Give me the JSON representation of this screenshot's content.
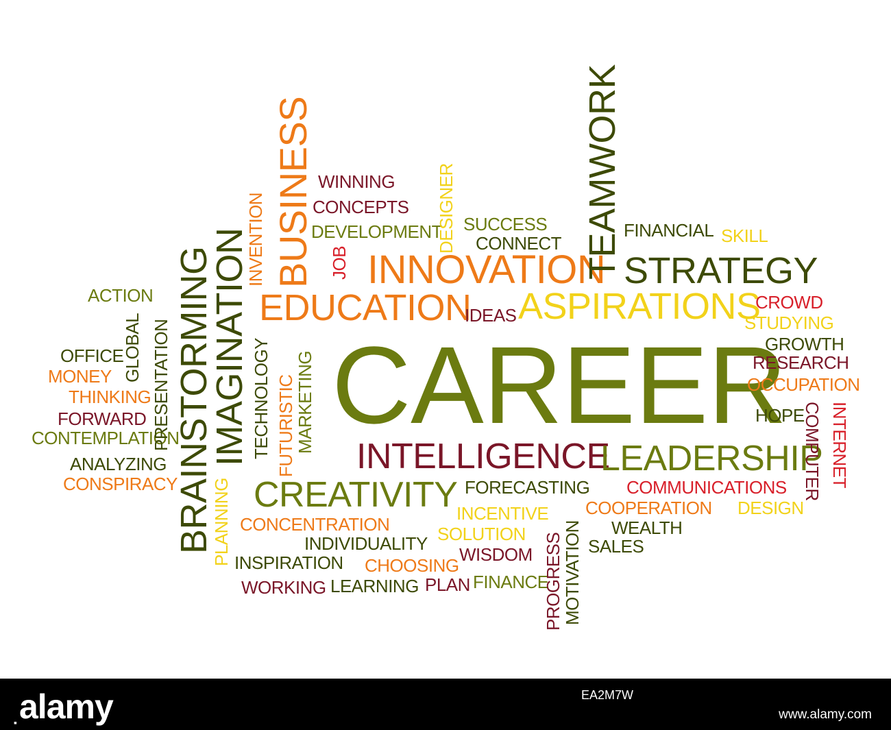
{
  "colors": {
    "olive": "#6b7b10",
    "dark_olive": "#3d4a06",
    "maroon": "#7a1628",
    "orange": "#ee7a18",
    "yellow": "#f2d21a",
    "red": "#d8202a",
    "background": "#ffffff",
    "footer": "#000000"
  },
  "words": {
    "career": "CAREER",
    "innovation": "INNOVATION",
    "strategy": "STRATEGY",
    "aspirations": "ASPIRATIONS",
    "education": "EDUCATION",
    "intelligence": "INTELLIGENCE",
    "leadership": "LEADERSHIP",
    "creativity": "CREATIVITY",
    "teamwork": "TEAMWORK",
    "business": "BUSINESS",
    "imagination": "IMAGINATION",
    "brainstorming": "BRAINSTORMING",
    "invention": "INVENTION",
    "job": "JOB",
    "designer": "DESIGNER",
    "winning": "WINNING",
    "concepts": "CONCEPTS",
    "development": "DEVELOPMENT",
    "success": "SUCCESS",
    "connect": "CONNECT",
    "financial": "FINANCIAL",
    "skill": "SKILL",
    "ideas": "IDEAS",
    "crowd": "CROWD",
    "studying": "STUDYING",
    "growth": "GROWTH",
    "research": "RESEARCH",
    "occupation": "OCCUPATION",
    "hope": "HOPE",
    "computer": "COMPUTER",
    "internet": "INTERNET",
    "action": "ACTION",
    "global": "GLOBAL",
    "presentation": "PRESENTATION",
    "office": "OFFICE",
    "money": "MONEY",
    "thinking": "THINKING",
    "forward": "FORWARD",
    "contemplation": "CONTEMPLATION",
    "analyzing": "ANALYZING",
    "conspiracy": "CONSPIRACY",
    "technology": "TECHNOLOGY",
    "futuristic": "FUTURISTIC",
    "marketing": "MARKETING",
    "planning": "PLANNING",
    "forecasting": "FORECASTING",
    "incentive": "INCENTIVE",
    "solution": "SOLUTION",
    "wisdom": "WISDOM",
    "concentration": "CONCENTRATION",
    "individuality": "INDIVIDUALITY",
    "inspiration": "INSPIRATION",
    "choosing": "CHOOSING",
    "working": "WORKING",
    "learning": "LEARNING",
    "plan": "PLAN",
    "finance": "FINANCE",
    "progress": "PROGRESS",
    "motivation": "MOTIVATION",
    "communications": "COMMUNICATIONS",
    "cooperation": "COOPERATION",
    "design": "DESIGN",
    "wealth": "WEALTH",
    "sales": "SALES"
  },
  "footer": {
    "brand": "alamy",
    "stock_id": "EA2M7W",
    "url": "www.alamy.com"
  }
}
